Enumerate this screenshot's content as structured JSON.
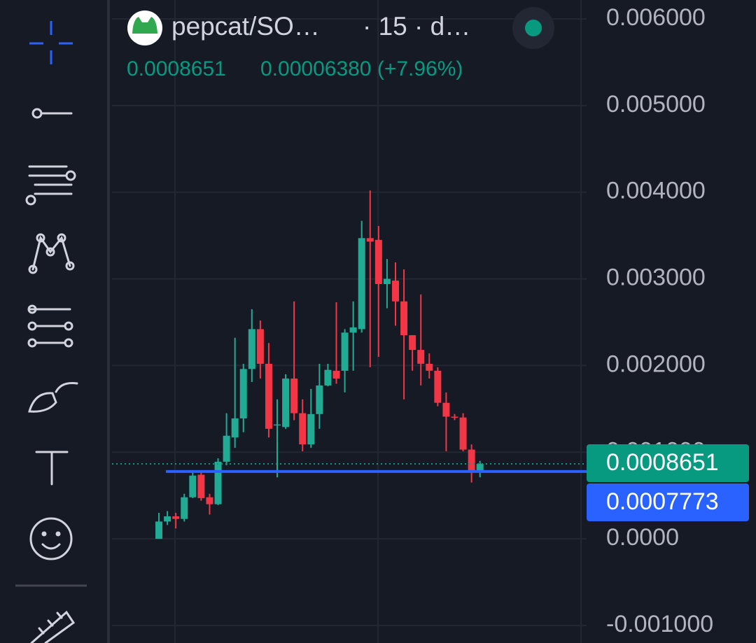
{
  "header": {
    "symbol": "pepcat/SO…",
    "interval": "· 15 · d…",
    "price": "0.0008651",
    "change": "0.00006380 (+7.96%)"
  },
  "chart_data": {
    "type": "candlestick",
    "up_color": "#22ab94",
    "down_color": "#f23645",
    "grid": true,
    "ylim": [
      -0.0012016,
      0.0062177
    ],
    "yticks": [
      {
        "value": 0.006,
        "label": "0.006000"
      },
      {
        "value": 0.005,
        "label": "0.005000"
      },
      {
        "value": 0.004,
        "label": "0.004000"
      },
      {
        "value": 0.003,
        "label": "0.003000"
      },
      {
        "value": 0.002,
        "label": "0.002000"
      },
      {
        "value": 0.001,
        "label": "0.001000"
      },
      {
        "value": 0,
        "label": "0.0000"
      },
      {
        "value": -0.001,
        "label": "-0.001000"
      }
    ],
    "open": [
      0.0,
      0.0002,
      0.00026,
      0.00023,
      0.00048,
      0.00074,
      0.00048,
      0.0004,
      0.00089,
      0.00117,
      0.00139,
      0.00196,
      0.00242,
      0.00202,
      0.00131,
      0.00129,
      0.00185,
      0.00145,
      0.00109,
      0.00144,
      0.00177,
      0.00194,
      0.00194,
      0.00238,
      0.00242,
      0.00347,
      0.00345,
      0.00294,
      0.00298,
      0.00274,
      0.00235,
      0.00218,
      0.00202,
      0.00194,
      0.00157,
      0.00141,
      0.0014,
      0.00103,
      0.00079
    ],
    "high": [
      0.0003,
      0.00032,
      0.0003,
      0.00052,
      0.00077,
      0.00077,
      0.00052,
      0.00093,
      0.00145,
      0.00232,
      0.00202,
      0.00265,
      0.00252,
      0.00226,
      0.00161,
      0.0019,
      0.00274,
      0.00161,
      0.00173,
      0.00202,
      0.00202,
      0.00273,
      0.00242,
      0.00274,
      0.00367,
      0.00402,
      0.00361,
      0.00323,
      0.00319,
      0.00311,
      0.00235,
      0.00282,
      0.00214,
      0.00198,
      0.00169,
      0.00144,
      0.00145,
      0.00109,
      0.0009
    ],
    "low": [
      0.0,
      0.00016,
      0.00012,
      0.0002,
      0.00047,
      0.00044,
      0.00028,
      0.00039,
      0.00085,
      0.00105,
      0.00123,
      0.00181,
      0.00185,
      0.00117,
      0.00071,
      0.00127,
      0.00137,
      0.00101,
      0.00105,
      0.00127,
      0.00176,
      0.00179,
      0.00169,
      0.00194,
      0.00238,
      0.00198,
      0.0021,
      0.00266,
      0.00246,
      0.00161,
      0.00194,
      0.00177,
      0.00185,
      0.00153,
      0.00101,
      0.00137,
      0.00101,
      0.00065,
      0.00071
    ],
    "close": [
      0.0002,
      0.00026,
      0.00023,
      0.00048,
      0.00073,
      0.00047,
      0.0004,
      0.00089,
      0.00119,
      0.00139,
      0.00196,
      0.00242,
      0.00202,
      0.00127,
      0.00132,
      0.00185,
      0.00145,
      0.00109,
      0.00144,
      0.00177,
      0.00195,
      0.00185,
      0.00238,
      0.00244,
      0.00347,
      0.00343,
      0.00294,
      0.003,
      0.00274,
      0.00235,
      0.00218,
      0.00202,
      0.00194,
      0.00157,
      0.00141,
      0.0014,
      0.00103,
      0.00079,
      0.0008651
    ],
    "price_line": {
      "value": 0.0008651,
      "label": "0.0008651",
      "color": "#089981"
    },
    "horizontal_line": {
      "value": 0.0007773,
      "label": "0.0007773",
      "color": "#2962ff"
    }
  }
}
